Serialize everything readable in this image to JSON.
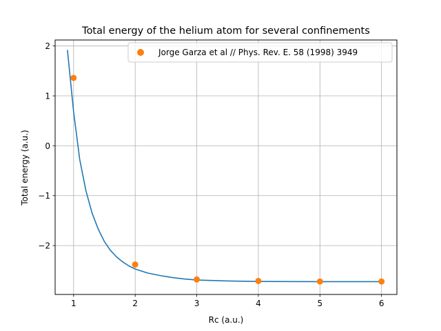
{
  "chart_data": {
    "type": "scatter",
    "title": "Total energy of the helium atom for several confinements",
    "xlabel": "Rc (a.u.)",
    "ylabel": "Total energy (a.u.)",
    "xlim": [
      0.7,
      6.25
    ],
    "ylim": [
      -2.98,
      2.12
    ],
    "xticks": [
      1,
      2,
      3,
      4,
      5,
      6
    ],
    "xtick_labels": [
      "1",
      "2",
      "3",
      "4",
      "5",
      "6"
    ],
    "yticks": [
      -2,
      -1,
      0,
      1,
      2
    ],
    "ytick_labels": [
      "−2",
      "−1",
      "0",
      "1",
      "2"
    ],
    "grid": true,
    "legend_position": "top-right",
    "series": [
      {
        "kind": "line",
        "color": "#1f77b4",
        "x": [
          0.9,
          1.0,
          1.1,
          1.2,
          1.3,
          1.4,
          1.5,
          1.6,
          1.7,
          1.8,
          1.9,
          2.0,
          2.2,
          2.4,
          2.6,
          2.8,
          3.0,
          3.5,
          4.0,
          4.5,
          5.0,
          5.5,
          6.0
        ],
        "y": [
          1.92,
          0.68,
          -0.28,
          -0.9,
          -1.35,
          -1.67,
          -1.92,
          -2.1,
          -2.23,
          -2.33,
          -2.41,
          -2.47,
          -2.55,
          -2.6,
          -2.64,
          -2.67,
          -2.69,
          -2.71,
          -2.72,
          -2.722,
          -2.723,
          -2.7235,
          -2.724
        ]
      },
      {
        "kind": "points",
        "name": "Jorge Garza et al // Phys. Rev. E. 58 (1998) 3949",
        "color": "#ff7f0e",
        "x": [
          1,
          2,
          3,
          4,
          5,
          6
        ],
        "y": [
          1.36,
          -2.38,
          -2.68,
          -2.71,
          -2.72,
          -2.72
        ]
      }
    ]
  }
}
